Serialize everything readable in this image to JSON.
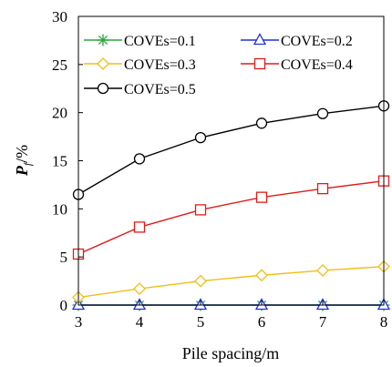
{
  "chart_data": {
    "type": "line",
    "xlabel": "Pile spacing/m",
    "ylabel_main": "P",
    "ylabel_sub": "f",
    "ylabel_unit": "/%",
    "x": [
      3,
      4,
      5,
      6,
      7,
      8
    ],
    "xlim": [
      3,
      8
    ],
    "ylim": [
      0,
      30
    ],
    "yticks": [
      0,
      5,
      10,
      15,
      20,
      25,
      30
    ],
    "xticks": [
      3,
      4,
      5,
      6,
      7,
      8
    ],
    "grid": false,
    "legend_position": "top-left",
    "series": [
      {
        "name": "COVEs=0.1",
        "color": "#2aa63c",
        "marker": "star",
        "values": [
          0,
          0,
          0,
          0,
          0,
          0
        ]
      },
      {
        "name": "COVEs=0.2",
        "color": "#1f2fd6",
        "marker": "triangle",
        "values": [
          0,
          0,
          0,
          0,
          0,
          0
        ]
      },
      {
        "name": "COVEs=0.3",
        "color": "#f2bd18",
        "marker": "diamond",
        "values": [
          0.8,
          1.7,
          2.5,
          3.1,
          3.6,
          4.0
        ]
      },
      {
        "name": "COVEs=0.4",
        "color": "#e01b1b",
        "marker": "square",
        "values": [
          5.3,
          8.1,
          9.9,
          11.2,
          12.1,
          12.9
        ]
      },
      {
        "name": "COVEs=0.5",
        "color": "#000000",
        "marker": "circle",
        "values": [
          11.5,
          15.2,
          17.4,
          18.9,
          19.9,
          20.7
        ]
      }
    ]
  }
}
